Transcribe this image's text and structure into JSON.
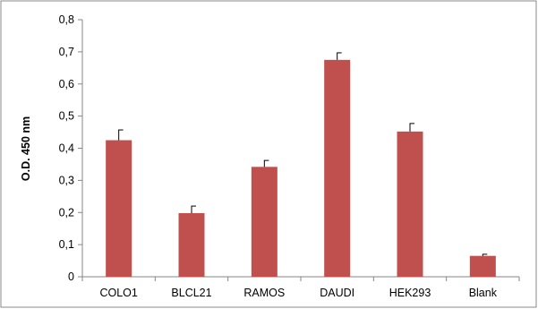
{
  "chart_data": {
    "type": "bar",
    "title": "",
    "xlabel": "",
    "ylabel": "O.D. 450 nm",
    "categories": [
      "COLO1",
      "BLCL21",
      "RAMOS",
      "DAUDI",
      "HEK293",
      "Blank"
    ],
    "values": [
      0.425,
      0.198,
      0.342,
      0.675,
      0.452,
      0.065
    ],
    "errors": [
      0.032,
      0.022,
      0.02,
      0.022,
      0.025,
      0.005
    ],
    "ylim": [
      0,
      0.8
    ],
    "yticks": [
      "0",
      "0,1",
      "0,2",
      "0,3",
      "0,4",
      "0,5",
      "0,6",
      "0,7",
      "0,8"
    ],
    "ytick_values": [
      0,
      0.1,
      0.2,
      0.3,
      0.4,
      0.5,
      0.6,
      0.7,
      0.8
    ],
    "grid": false,
    "legend": "none",
    "bar_color": "#c0504d"
  }
}
